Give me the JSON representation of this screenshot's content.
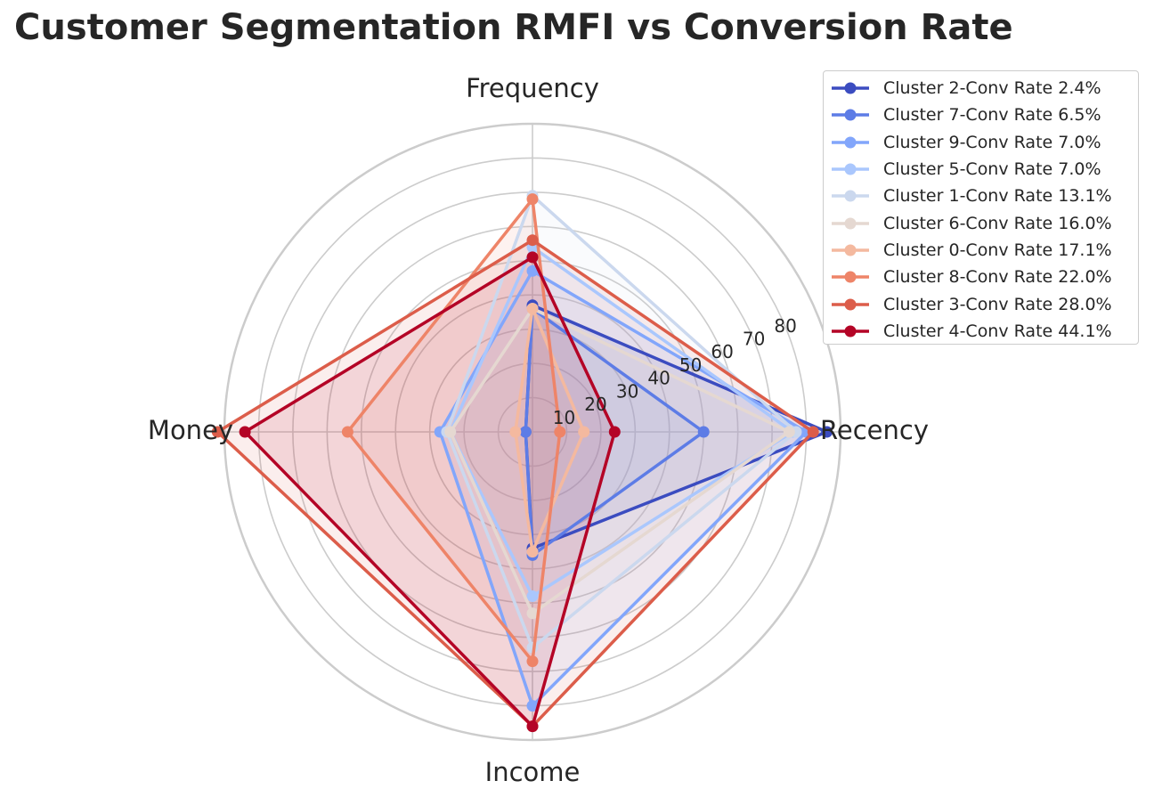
{
  "chart_data": {
    "type": "radar",
    "title": "Customer Segmentation RMFI vs Conversion Rate",
    "axes": [
      "Recency",
      "Frequency",
      "Money",
      "Income"
    ],
    "radial_ticks": [
      10,
      20,
      30,
      40,
      50,
      60,
      70,
      80
    ],
    "rlim": [
      0,
      90
    ],
    "grid": true,
    "legend_position": "top-right",
    "series": [
      {
        "name": "Cluster 2-Conv Rate 2.4%",
        "color": "#3b4cc0",
        "values": [
          86,
          37,
          2,
          34
        ]
      },
      {
        "name": "Cluster 7-Conv Rate 6.5%",
        "color": "#5d7ce6",
        "values": [
          50,
          36,
          2,
          36
        ]
      },
      {
        "name": "Cluster 9-Conv Rate 7.0%",
        "color": "#82a6fb",
        "values": [
          80,
          47,
          27,
          80
        ]
      },
      {
        "name": "Cluster 5-Conv Rate 7.0%",
        "color": "#aac7fd",
        "values": [
          76,
          54,
          24,
          48
        ]
      },
      {
        "name": "Cluster 1-Conv Rate 13.1%",
        "color": "#cbd8ee",
        "values": [
          77,
          69,
          25,
          63
        ]
      },
      {
        "name": "Cluster 6-Conv Rate 16.0%",
        "color": "#e5d8d1",
        "values": [
          75,
          36,
          24,
          53
        ]
      },
      {
        "name": "Cluster 0-Conv Rate 17.1%",
        "color": "#f4b99f",
        "values": [
          15,
          36,
          5,
          35
        ]
      },
      {
        "name": "Cluster 8-Conv Rate 22.0%",
        "color": "#ee8468",
        "values": [
          8,
          68,
          54,
          67
        ]
      },
      {
        "name": "Cluster 3-Conv Rate 28.0%",
        "color": "#dc5d4a",
        "values": [
          82,
          56,
          92,
          86
        ]
      },
      {
        "name": "Cluster 4-Conv Rate 44.1%",
        "color": "#b40426",
        "values": [
          24,
          51,
          84,
          86
        ]
      }
    ]
  }
}
